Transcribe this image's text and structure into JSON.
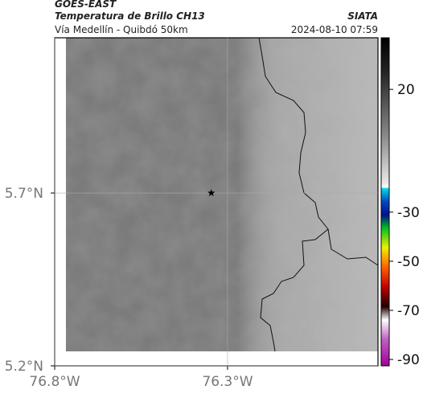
{
  "header": {
    "source": "GOES-EAST",
    "title": "Temperatura de Brillo CH13",
    "subtitle": "Vía Medellín - Quibdó 50km",
    "agency": "SIATA",
    "timestamp": "2024-08-10 07:59"
  },
  "map": {
    "xlim": [
      -76.8,
      -75.865
    ],
    "ylim": [
      5.2,
      6.149
    ],
    "xticks": [
      {
        "value": -76.8,
        "label": "76.8°W"
      },
      {
        "value": -76.3,
        "label": "76.3°W"
      }
    ],
    "yticks": [
      {
        "value": 5.2,
        "label": "5.2°N"
      },
      {
        "value": 5.7,
        "label": "5.7°N"
      }
    ],
    "marker": {
      "lon": -76.347,
      "lat": 5.7
    }
  },
  "colorbar": {
    "lim": [
      -92.6,
      41
    ],
    "ticks": [
      20,
      -30,
      -50,
      -70,
      -90
    ]
  }
}
